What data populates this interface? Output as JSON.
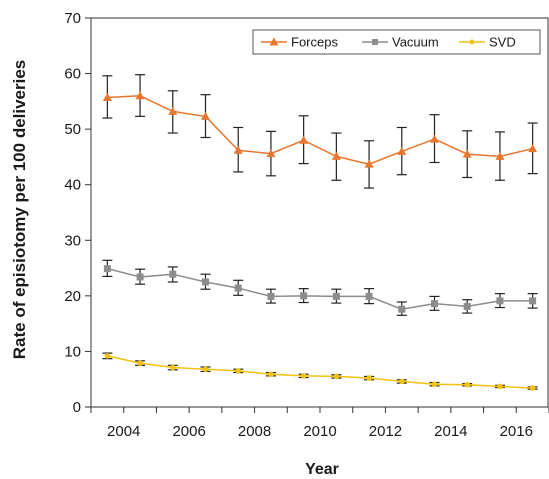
{
  "chart_data": {
    "type": "line",
    "title": "",
    "xlabel": "Year",
    "ylabel": "Rate of episiotomy per 100 deliveries",
    "x": [
      2003.5,
      2004.5,
      2005.5,
      2006.5,
      2007.5,
      2008.5,
      2009.5,
      2010.5,
      2011.5,
      2012.5,
      2013.5,
      2014.5,
      2015.5,
      2016.5
    ],
    "xlim": [
      2003,
      2017
    ],
    "ylim": [
      0,
      70
    ],
    "x_tick_labels": [
      "2004",
      "2006",
      "2008",
      "2010",
      "2012",
      "2014",
      "2016"
    ],
    "y_tick_labels": [
      "0",
      "10",
      "20",
      "30",
      "40",
      "50",
      "60",
      "70"
    ],
    "legend_position": "top-right",
    "grid": false,
    "series": [
      {
        "name": "Forceps",
        "color": "#e8762d",
        "marker": "triangle",
        "values": [
          55.7,
          56.0,
          53.2,
          52.3,
          46.2,
          45.6,
          48.0,
          45.1,
          43.7,
          46.0,
          48.2,
          45.5,
          45.1,
          46.5
        ],
        "err_low": [
          52.0,
          52.3,
          49.3,
          48.5,
          42.3,
          41.6,
          43.8,
          40.8,
          39.4,
          41.8,
          44.0,
          41.3,
          40.8,
          42.0
        ],
        "err_high": [
          59.6,
          59.8,
          56.9,
          56.2,
          50.3,
          49.6,
          52.4,
          49.3,
          47.9,
          50.3,
          52.6,
          49.7,
          49.5,
          51.1
        ]
      },
      {
        "name": "Vacuum",
        "color": "#8c8c8c",
        "marker": "square",
        "values": [
          24.9,
          23.4,
          23.9,
          22.5,
          21.4,
          19.9,
          20.0,
          19.9,
          19.9,
          17.6,
          18.6,
          18.1,
          19.1,
          19.1
        ],
        "err_low": [
          23.5,
          22.1,
          22.5,
          21.2,
          20.1,
          18.7,
          18.8,
          18.7,
          18.6,
          16.5,
          17.4,
          16.9,
          17.9,
          17.8
        ],
        "err_high": [
          26.4,
          24.8,
          25.2,
          23.9,
          22.8,
          21.2,
          21.3,
          21.2,
          21.3,
          18.9,
          19.9,
          19.3,
          20.4,
          20.4
        ]
      },
      {
        "name": "SVD",
        "color": "#f2c212",
        "marker": "dot",
        "values": [
          9.2,
          7.9,
          7.1,
          6.8,
          6.5,
          5.9,
          5.6,
          5.5,
          5.2,
          4.6,
          4.1,
          4.0,
          3.7,
          3.4
        ],
        "err_low": [
          8.7,
          7.5,
          6.7,
          6.4,
          6.2,
          5.6,
          5.3,
          5.2,
          4.9,
          4.3,
          3.8,
          3.8,
          3.5,
          3.2
        ],
        "err_high": [
          9.7,
          8.3,
          7.5,
          7.2,
          6.8,
          6.2,
          5.9,
          5.8,
          5.5,
          4.9,
          4.4,
          4.2,
          3.9,
          3.6
        ]
      }
    ]
  }
}
